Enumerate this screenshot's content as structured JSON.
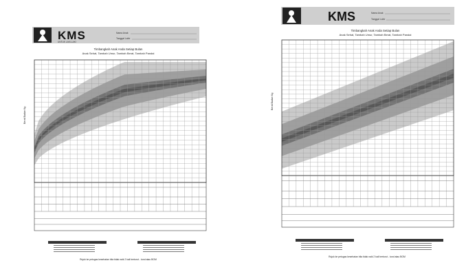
{
  "left_card": {
    "brand": "KMS",
    "brand_sub": "UNTUK LAKI-LAKI",
    "field_name_label": "Nama Anak",
    "field_birth_label": "Tanggal Lahir",
    "title": "Timbangkah Anak Anda Setiap Bulan",
    "subtitle": "Anak Sehat, Tambah Umur, Tambah Berat, Tambah Pandai",
    "yaxis_label": "Berat Badan Kg",
    "footer_note": "Rujuk ke petugas kesehatan bila tidak naik 2 kali berturut - turut atau BGM"
  },
  "right_card": {
    "brand": "KMS",
    "field_name_label": "Nama Anak",
    "field_birth_label": "Tanggal Lahir",
    "title": "Timbangkah Anak Anda Setiap Bulan",
    "subtitle": "Anak Sehat, Tambah Umur, Tambah Berat, Tambah Pandai",
    "yaxis_label": "Berat Badan Kg",
    "footer_note": "Rujuk ke petugas kesehatan bila tidak naik 2 kali berturut - turut atau BGM"
  },
  "colors": {
    "band_outer": "#c4c4c4",
    "band_mid": "#9a9a9a",
    "band_inner": "#6e6e6e",
    "band_core": "#555555",
    "grid": "#9a9a9a",
    "ink": "#222222",
    "header_bar": "#cfcfcf"
  }
}
